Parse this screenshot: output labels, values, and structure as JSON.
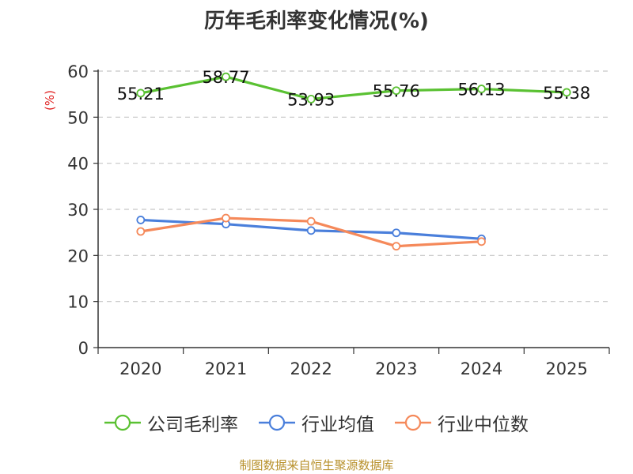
{
  "chart_data": {
    "type": "line",
    "title": "历年毛利率变化情况(%)",
    "ylabel": "(%)",
    "xlabel": "",
    "categories": [
      "2020",
      "2021",
      "2022",
      "2023",
      "2024",
      "2025"
    ],
    "ylim": [
      0,
      60
    ],
    "yticks": [
      0,
      10,
      20,
      30,
      40,
      50,
      60
    ],
    "grid": true,
    "legend_position": "bottom",
    "series": [
      {
        "name": "公司毛利率",
        "color": "#5ac132",
        "values": [
          55.21,
          58.77,
          53.93,
          55.76,
          56.13,
          55.38
        ],
        "labels": [
          "55.21",
          "58.77",
          "53.93",
          "55.76",
          "56.13",
          "55.38"
        ]
      },
      {
        "name": "行业均值",
        "color": "#4a7fdb",
        "values": [
          27.7,
          26.8,
          25.4,
          24.9,
          23.6,
          null
        ]
      },
      {
        "name": "行业中位数",
        "color": "#f5895a",
        "values": [
          25.2,
          28.1,
          27.4,
          22.0,
          23.0,
          null
        ]
      }
    ]
  },
  "source": "制图数据来自恒生聚源数据库"
}
